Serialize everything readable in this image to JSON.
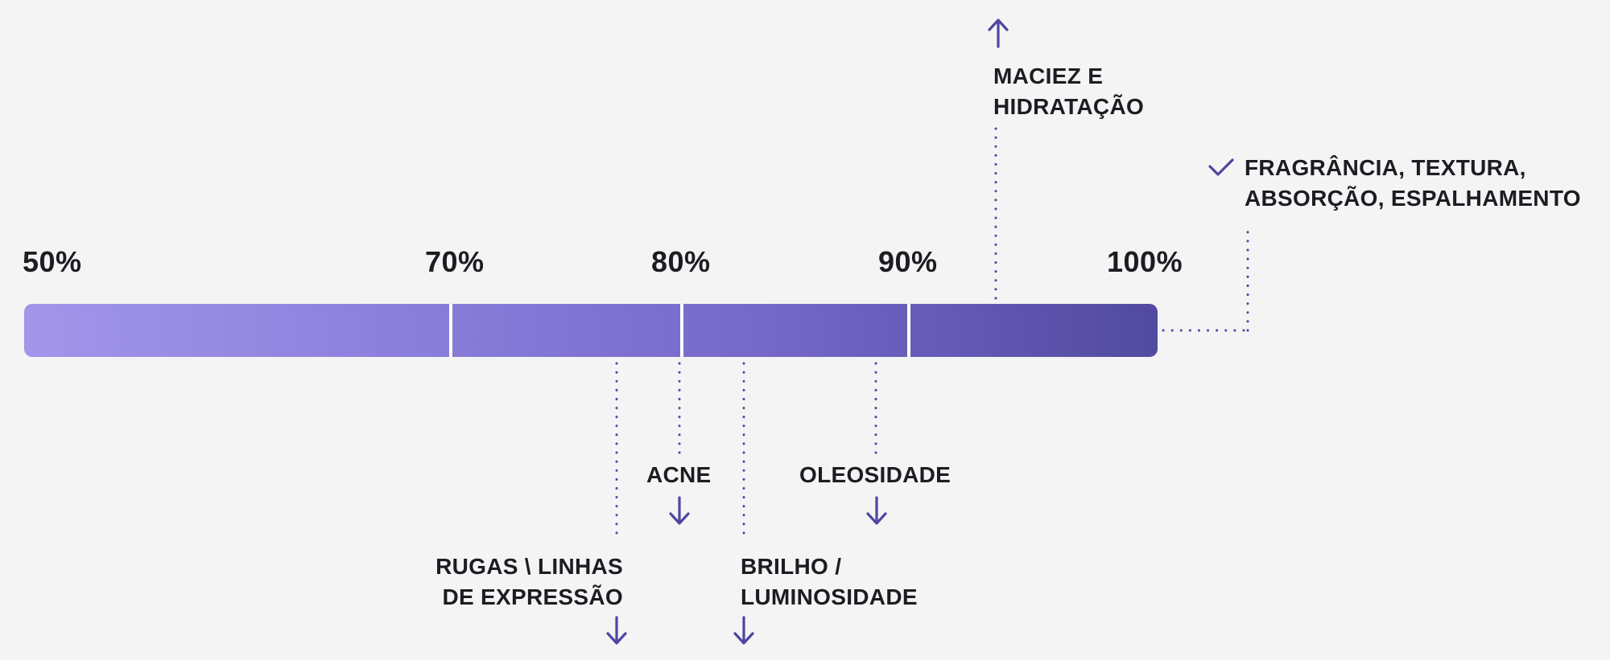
{
  "scale": {
    "ticks": [
      {
        "label": "50%",
        "value": 50
      },
      {
        "label": "70%",
        "value": 70
      },
      {
        "label": "80%",
        "value": 80
      },
      {
        "label": "90%",
        "value": 90
      },
      {
        "label": "100%",
        "value": 100
      }
    ]
  },
  "colors": {
    "bar_start": "#a295ea",
    "bar_end": "#524aa0",
    "accent": "#4f46a0",
    "background": "#f4f4f5"
  },
  "annotations": {
    "maciez": {
      "lines": [
        "MACIEZ E",
        "HIDRATAÇÃO"
      ],
      "direction": "up",
      "icon": "arrow-up-icon"
    },
    "fragrancia": {
      "lines": [
        "FRAGRÂNCIA, TEXTURA,",
        "ABSORÇÃO, ESPALHAMENTO"
      ],
      "icon": "checkmark-icon"
    },
    "rugas": {
      "lines": [
        "RUGAS \\ LINHAS",
        "DE EXPRESSÃO"
      ],
      "direction": "down",
      "icon": "arrow-down-icon"
    },
    "acne": {
      "lines": [
        "ACNE"
      ],
      "direction": "down",
      "icon": "arrow-down-icon"
    },
    "brilho": {
      "lines": [
        "BRILHO /",
        "LUMINOSIDADE"
      ],
      "direction": "down",
      "icon": "arrow-down-icon"
    },
    "oleosidade": {
      "lines": [
        "OLEOSIDADE"
      ],
      "direction": "down",
      "icon": "arrow-down-icon"
    }
  }
}
